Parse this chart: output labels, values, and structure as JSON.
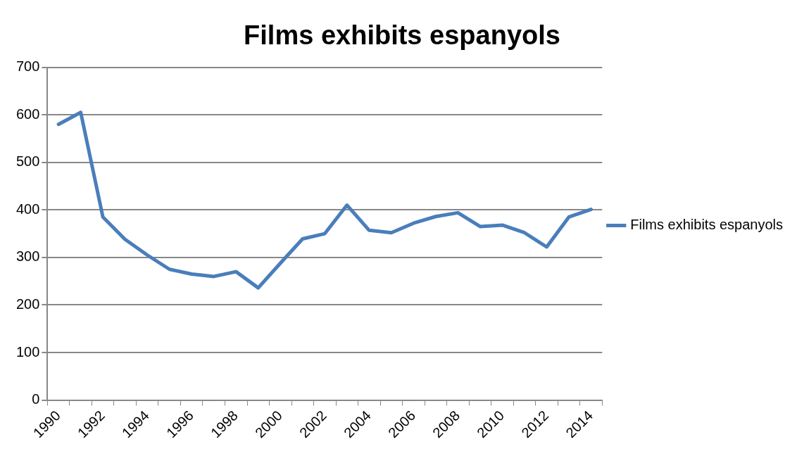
{
  "chart_data": {
    "type": "line",
    "title": "Films exhibits espanyols",
    "categories": [
      "1990",
      null,
      "1992",
      null,
      "1994",
      null,
      "1996",
      null,
      "1998",
      null,
      "2000",
      null,
      "2002",
      null,
      "2004",
      null,
      "2006",
      null,
      "2008",
      null,
      "2010",
      null,
      "2012",
      null,
      "2014"
    ],
    "series": [
      {
        "name": "Films exhibits espanyols",
        "color": "#4a7ebb",
        "values": [
          580,
          605,
          385,
          338,
          305,
          275,
          265,
          260,
          270,
          236,
          288,
          339,
          350,
          410,
          357,
          352,
          372,
          386,
          394,
          365,
          368,
          352,
          322,
          385,
          401
        ]
      }
    ],
    "ylim": [
      0,
      700
    ],
    "yticks": [
      0,
      100,
      200,
      300,
      400,
      500,
      600,
      700
    ],
    "grid": "y",
    "legend": "right",
    "marker": "none",
    "line_style": "solid"
  }
}
